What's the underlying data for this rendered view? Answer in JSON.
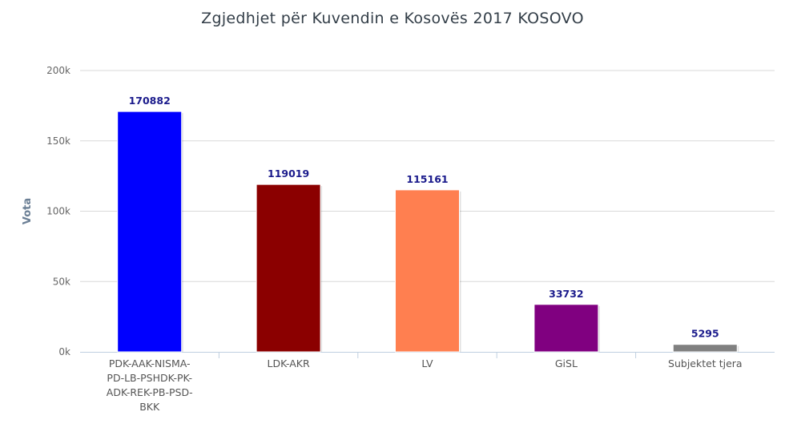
{
  "chart_data": {
    "type": "bar",
    "title": "Zgjedhjet për Kuvendin e Kosovës 2017 KOSOVO",
    "xlabel": "",
    "ylabel": "Vota",
    "ylim": [
      0,
      200000
    ],
    "yticks": [
      "0k",
      "50k",
      "100k",
      "150k",
      "200k"
    ],
    "categories": [
      [
        "PDK-AAK-NISMA-",
        "PD-LB-PSHDK-PK-",
        "ADK-REK-PB-PSD-",
        "BKK"
      ],
      [
        "LDK-AKR"
      ],
      [
        "LV"
      ],
      [
        "GiSL"
      ],
      [
        "Subjektet tjera"
      ]
    ],
    "values": [
      170882,
      119019,
      115161,
      33732,
      5295
    ],
    "colors": [
      "#0000ff",
      "#8b0000",
      "#ff7f50",
      "#800080",
      "#808080"
    ],
    "grid": true,
    "legend": "none"
  }
}
